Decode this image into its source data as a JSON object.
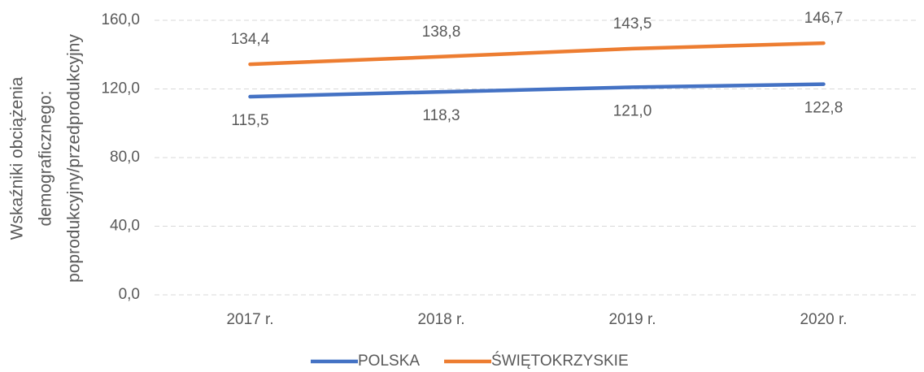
{
  "chart_data": {
    "type": "line",
    "ylabel": [
      "Wskaźniki obciążenia",
      "demograficznego:",
      "poprodukcyjny/przedprodukcyjny"
    ],
    "categories": [
      "2017 r.",
      "2018 r.",
      "2019 r.",
      "2020 r."
    ],
    "series": [
      {
        "name": "POLSKA",
        "color": "#4472c4",
        "values": [
          115.5,
          118.3,
          121.0,
          122.8
        ],
        "value_labels": [
          "115,5",
          "118,3",
          "121,0",
          "122,8"
        ]
      },
      {
        "name": "ŚWIĘTOKRZYSKIE",
        "color": "#ed7d31",
        "values": [
          134.4,
          138.8,
          143.5,
          146.7
        ],
        "value_labels": [
          "134,4",
          "138,8",
          "143,5",
          "146,7"
        ]
      }
    ],
    "ylim": [
      0,
      160
    ],
    "yticks": [
      {
        "value": 0,
        "label": "0,0"
      },
      {
        "value": 40,
        "label": "40,0"
      },
      {
        "value": 80,
        "label": "80,0"
      },
      {
        "value": 120,
        "label": "120,0"
      },
      {
        "value": 160,
        "label": "160,0"
      }
    ],
    "grid": true,
    "legend": "bottom"
  }
}
